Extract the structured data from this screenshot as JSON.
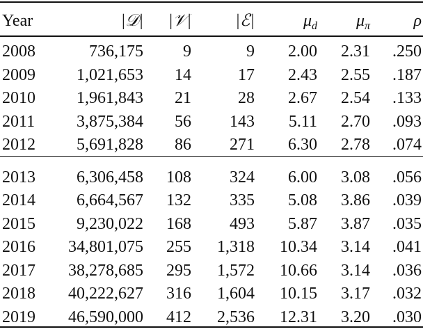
{
  "table": {
    "header": [
      "Year",
      "|𝒟|",
      "|𝒱|",
      "|ℰ|",
      {
        "text": "μ",
        "sub": "d"
      },
      {
        "text": "μ",
        "sub": "π"
      },
      "ρ"
    ],
    "body": [
      [
        [
          "2008",
          "736,175",
          "9",
          "9",
          "2.00",
          "2.31",
          ".250"
        ],
        [
          "2009",
          "1,021,653",
          "14",
          "17",
          "2.43",
          "2.55",
          ".187"
        ],
        [
          "2010",
          "1,961,843",
          "21",
          "28",
          "2.67",
          "2.54",
          ".133"
        ],
        [
          "2011",
          "3,875,384",
          "56",
          "143",
          "5.11",
          "2.70",
          ".093"
        ],
        [
          "2012",
          "5,691,828",
          "86",
          "271",
          "6.30",
          "2.78",
          ".074"
        ]
      ],
      [
        [
          "2013",
          "6,306,458",
          "108",
          "324",
          "6.00",
          "3.08",
          ".056"
        ],
        [
          "2014",
          "6,664,567",
          "132",
          "335",
          "5.08",
          "3.86",
          ".039"
        ],
        [
          "2015",
          "9,230,022",
          "168",
          "493",
          "5.87",
          "3.87",
          ".035"
        ],
        [
          "2016",
          "34,801,075",
          "255",
          "1,318",
          "10.34",
          "3.14",
          ".041"
        ],
        [
          "2017",
          "38,278,685",
          "295",
          "1,572",
          "10.66",
          "3.14",
          ".036"
        ],
        [
          "2018",
          "40,222,627",
          "316",
          "1,604",
          "10.15",
          "3.17",
          ".032"
        ],
        [
          "2019",
          "46,590,000",
          "412",
          "2,536",
          "12.31",
          "3.20",
          ".030"
        ]
      ]
    ]
  }
}
